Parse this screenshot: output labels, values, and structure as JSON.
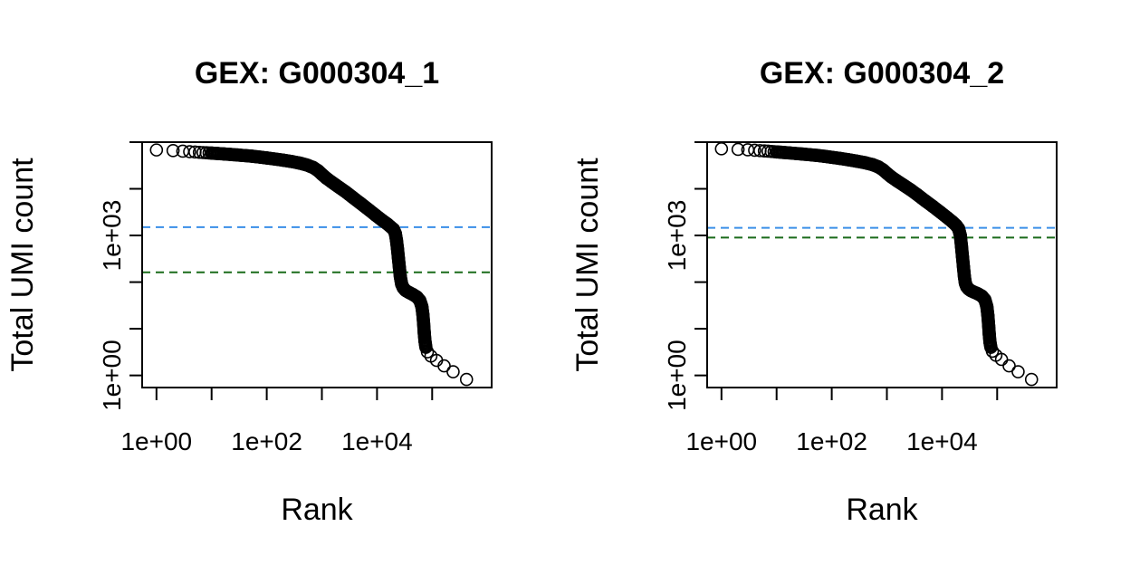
{
  "chart_data": [
    {
      "type": "scatter",
      "title": "GEX: G000304_1",
      "xlabel": "Rank",
      "ylabel": "Total UMI count",
      "x_scale": "log10",
      "y_scale": "log10",
      "xlim": [
        0.55,
        1200000
      ],
      "ylim": [
        0.55,
        100000
      ],
      "x_tick_labels": [
        {
          "value": 1,
          "label": "1e+00"
        },
        {
          "value": 100,
          "label": "1e+02"
        },
        {
          "value": 10000,
          "label": "1e+04"
        }
      ],
      "x_minor_ticks": [
        10,
        1000,
        100000
      ],
      "y_tick_labels": [
        {
          "value": 1,
          "label": "1e+00"
        },
        {
          "value": 1000,
          "label": "1e+03"
        }
      ],
      "y_minor_ticks": [
        10,
        100,
        10000,
        100000
      ],
      "thresholds": [
        {
          "value": 1510,
          "color": "#3a8fe8"
        },
        {
          "value": 162,
          "color": "#1a6b1a"
        }
      ],
      "points": [
        [
          1,
          68000
        ],
        [
          2,
          66000
        ],
        [
          3,
          64000
        ],
        [
          4,
          62500
        ],
        [
          5,
          61500
        ],
        [
          6,
          60500
        ],
        [
          7,
          59800
        ],
        [
          8,
          59200
        ],
        [
          9,
          58700
        ],
        [
          10,
          58200
        ],
        [
          13,
          57000
        ],
        [
          17,
          55800
        ],
        [
          22,
          54500
        ],
        [
          30,
          53000
        ],
        [
          40,
          51500
        ],
        [
          55,
          49800
        ],
        [
          75,
          47800
        ],
        [
          100,
          45800
        ],
        [
          140,
          43500
        ],
        [
          200,
          41000
        ],
        [
          280,
          38500
        ],
        [
          400,
          35500
        ],
        [
          550,
          32000
        ],
        [
          700,
          28500
        ],
        [
          850,
          24500
        ],
        [
          1000,
          20500
        ],
        [
          1200,
          17000
        ],
        [
          1500,
          14000
        ],
        [
          2000,
          11000
        ],
        [
          2700,
          8600
        ],
        [
          3600,
          6600
        ],
        [
          5000,
          4900
        ],
        [
          7000,
          3600
        ],
        [
          9500,
          2700
        ],
        [
          12500,
          2100
        ],
        [
          15500,
          1750
        ],
        [
          18000,
          1500
        ],
        [
          20000,
          1350
        ],
        [
          21500,
          1100
        ],
        [
          22500,
          800
        ],
        [
          23500,
          520
        ],
        [
          24500,
          320
        ],
        [
          25500,
          200
        ],
        [
          26500,
          130
        ],
        [
          28000,
          90
        ],
        [
          30000,
          75
        ],
        [
          33000,
          66
        ],
        [
          38000,
          60
        ],
        [
          45000,
          54
        ],
        [
          53000,
          48
        ],
        [
          60000,
          40
        ],
        [
          65000,
          30
        ],
        [
          68000,
          20
        ],
        [
          70000,
          13
        ],
        [
          72000,
          8
        ],
        [
          74000,
          5.5
        ],
        [
          77000,
          4
        ],
        [
          82000,
          3.2
        ],
        [
          95000,
          2.6
        ],
        [
          120000,
          2.1
        ],
        [
          165000,
          1.6
        ],
        [
          240000,
          1.2
        ],
        [
          420000,
          0.82
        ]
      ]
    },
    {
      "type": "scatter",
      "title": "GEX: G000304_2",
      "xlabel": "Rank",
      "ylabel": "Total UMI count",
      "x_scale": "log10",
      "y_scale": "log10",
      "xlim": [
        0.55,
        1200000
      ],
      "ylim": [
        0.55,
        100000
      ],
      "x_tick_labels": [
        {
          "value": 1,
          "label": "1e+00"
        },
        {
          "value": 100,
          "label": "1e+02"
        },
        {
          "value": 10000,
          "label": "1e+04"
        }
      ],
      "x_minor_ticks": [
        10,
        1000,
        100000
      ],
      "y_tick_labels": [
        {
          "value": 1,
          "label": "1e+00"
        },
        {
          "value": 1000,
          "label": "1e+03"
        }
      ],
      "y_minor_ticks": [
        10,
        100,
        10000,
        100000
      ],
      "thresholds": [
        {
          "value": 1460,
          "color": "#3a8fe8"
        },
        {
          "value": 900,
          "color": "#1a6b1a"
        }
      ],
      "points": [
        [
          1,
          72000
        ],
        [
          2,
          70000
        ],
        [
          3,
          68500
        ],
        [
          4,
          67000
        ],
        [
          5,
          65800
        ],
        [
          6,
          64800
        ],
        [
          7,
          64000
        ],
        [
          8,
          63200
        ],
        [
          9,
          62500
        ],
        [
          10,
          61800
        ],
        [
          13,
          60300
        ],
        [
          17,
          58800
        ],
        [
          22,
          57200
        ],
        [
          30,
          55500
        ],
        [
          40,
          53800
        ],
        [
          55,
          51800
        ],
        [
          75,
          49600
        ],
        [
          100,
          47300
        ],
        [
          140,
          44800
        ],
        [
          200,
          42000
        ],
        [
          280,
          39200
        ],
        [
          400,
          36200
        ],
        [
          550,
          33000
        ],
        [
          700,
          29500
        ],
        [
          850,
          25500
        ],
        [
          1000,
          21500
        ],
        [
          1200,
          18000
        ],
        [
          1500,
          15000
        ],
        [
          2000,
          12000
        ],
        [
          2700,
          9500
        ],
        [
          3600,
          7400
        ],
        [
          5000,
          5500
        ],
        [
          7000,
          4100
        ],
        [
          9500,
          3100
        ],
        [
          12500,
          2400
        ],
        [
          15500,
          1950
        ],
        [
          18000,
          1650
        ],
        [
          20000,
          1400
        ],
        [
          21500,
          1000
        ],
        [
          22500,
          600
        ],
        [
          23500,
          350
        ],
        [
          24500,
          210
        ],
        [
          25500,
          130
        ],
        [
          26500,
          95
        ],
        [
          28000,
          80
        ],
        [
          30000,
          72
        ],
        [
          33000,
          66
        ],
        [
          38000,
          61
        ],
        [
          45000,
          56
        ],
        [
          53000,
          50
        ],
        [
          60000,
          42
        ],
        [
          65000,
          30
        ],
        [
          68000,
          19
        ],
        [
          70000,
          12
        ],
        [
          72000,
          7.5
        ],
        [
          74000,
          5.2
        ],
        [
          77000,
          4
        ],
        [
          82000,
          3.3
        ],
        [
          95000,
          2.7
        ],
        [
          120000,
          2.2
        ],
        [
          165000,
          1.6
        ],
        [
          240000,
          1.2
        ],
        [
          420000,
          0.82
        ]
      ]
    }
  ]
}
